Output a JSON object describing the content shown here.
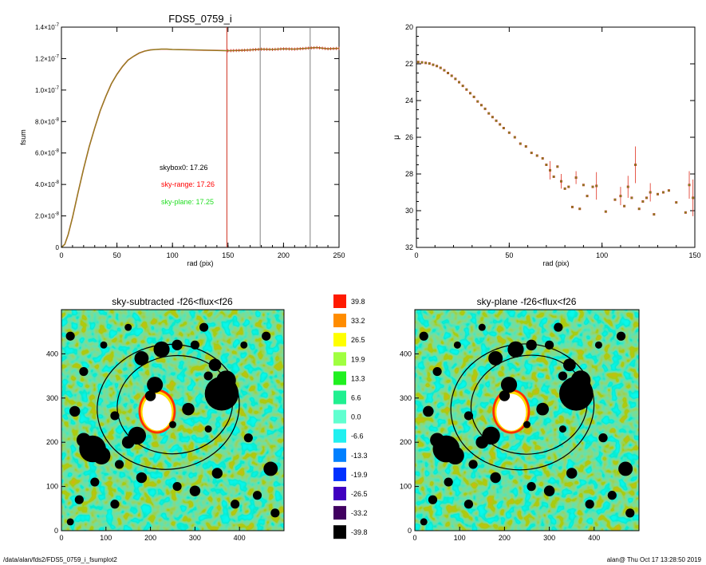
{
  "footer": {
    "left": "/data/alan/fds2/FDS5_0759_i_fsumplot2",
    "right": "alan@  Thu Oct 17 13:28:50 2019"
  },
  "chart_data": [
    {
      "type": "line",
      "title": "FDS5_0759_i",
      "xlabel": "rad (pix)",
      "ylabel": "fsum",
      "xlim": [
        0,
        250
      ],
      "ylim": [
        0,
        1.4e-07
      ],
      "x_ticks": [
        "0",
        "50",
        "100",
        "150",
        "200",
        "250"
      ],
      "y_ticks": [
        {
          "v": 0,
          "base": "0",
          "exp": ""
        },
        {
          "v": 2e-08,
          "base": "2.0×10",
          "exp": "-8"
        },
        {
          "v": 4e-08,
          "base": "4.0×10",
          "exp": "-8"
        },
        {
          "v": 6e-08,
          "base": "6.0×10",
          "exp": "-8"
        },
        {
          "v": 8e-08,
          "base": "8.0×10",
          "exp": "-8"
        },
        {
          "v": 1e-07,
          "base": "1.0×10",
          "exp": "-7"
        },
        {
          "v": 1.2e-07,
          "base": "1.2×10",
          "exp": "-7"
        },
        {
          "v": 1.4e-07,
          "base": "1.4×10",
          "exp": "-7"
        }
      ],
      "series_x": [
        0,
        3,
        6,
        10,
        15,
        20,
        25,
        30,
        35,
        40,
        45,
        50,
        55,
        60,
        65,
        70,
        75,
        80,
        85,
        90,
        95,
        100,
        120,
        140,
        150,
        160,
        170,
        180,
        190,
        200,
        210,
        220,
        230,
        240,
        250
      ],
      "series_y": [
        0,
        2e-09,
        8e-09,
        1.9e-08,
        3.5e-08,
        5e-08,
        6.4e-08,
        7.6e-08,
        8.7e-08,
        9.6e-08,
        1.04e-07,
        1.1e-07,
        1.15e-07,
        1.19e-07,
        1.215e-07,
        1.235e-07,
        1.248e-07,
        1.255e-07,
        1.258e-07,
        1.26e-07,
        1.26e-07,
        1.258e-07,
        1.255e-07,
        1.252e-07,
        1.25e-07,
        1.252e-07,
        1.255e-07,
        1.26e-07,
        1.258e-07,
        1.262e-07,
        1.26e-07,
        1.265e-07,
        1.27e-07,
        1.262e-07,
        1.265e-07
      ],
      "vlines": [
        {
          "x": 149,
          "color": "#d03020"
        },
        {
          "x": 179,
          "color": "#808080"
        },
        {
          "x": 224,
          "color": "#808080"
        }
      ],
      "annotations": [
        {
          "text": "skybox0: 17.26",
          "color": "#000000"
        },
        {
          "text": "sky-range: 17.26",
          "color": "#ff0000"
        },
        {
          "text": "sky-plane: 17.25",
          "color": "#22dd22"
        }
      ]
    },
    {
      "type": "scatter",
      "title": "",
      "xlabel": "rad (pix)",
      "ylabel": "μ",
      "xlim": [
        0,
        150
      ],
      "ylim": [
        20,
        32
      ],
      "y_inverted": true,
      "x_ticks": [
        "0",
        "50",
        "100",
        "150"
      ],
      "y_ticks": [
        "20",
        "22",
        "24",
        "26",
        "28",
        "30",
        "32"
      ],
      "points": [
        [
          1,
          21.9
        ],
        [
          3,
          21.92
        ],
        [
          5,
          21.95
        ],
        [
          7,
          21.98
        ],
        [
          9,
          22.05
        ],
        [
          11,
          22.12
        ],
        [
          13,
          22.22
        ],
        [
          15,
          22.35
        ],
        [
          17,
          22.5
        ],
        [
          19,
          22.65
        ],
        [
          21,
          22.82
        ],
        [
          23,
          23.0
        ],
        [
          25,
          23.2
        ],
        [
          27,
          23.4
        ],
        [
          29,
          23.6
        ],
        [
          31,
          23.8
        ],
        [
          33,
          24.05
        ],
        [
          35,
          24.25
        ],
        [
          37,
          24.45
        ],
        [
          39,
          24.7
        ],
        [
          41,
          24.9
        ],
        [
          43,
          25.1
        ],
        [
          45,
          25.3
        ],
        [
          47,
          25.5
        ],
        [
          50,
          25.75
        ],
        [
          53,
          26.0
        ],
        [
          56,
          26.35
        ],
        [
          59,
          26.5
        ],
        [
          62,
          26.85
        ],
        [
          65,
          27.0
        ],
        [
          68,
          27.15
        ],
        [
          70,
          27.5
        ],
        [
          72,
          27.8
        ],
        [
          74,
          28.15
        ],
        [
          76,
          27.6
        ],
        [
          78,
          28.4
        ],
        [
          80,
          28.8
        ],
        [
          82,
          28.7
        ],
        [
          84,
          29.8
        ],
        [
          86,
          28.2
        ],
        [
          88,
          29.9
        ],
        [
          90,
          28.6
        ],
        [
          92,
          29.2
        ],
        [
          95,
          28.7
        ],
        [
          97,
          28.65
        ],
        [
          102,
          30.05
        ],
        [
          107,
          29.4
        ],
        [
          110,
          29.2
        ],
        [
          112,
          29.75
        ],
        [
          114,
          28.7
        ],
        [
          116,
          29.3
        ],
        [
          118,
          27.5
        ],
        [
          120,
          29.9
        ],
        [
          122,
          29.5
        ],
        [
          124,
          29.3
        ],
        [
          126,
          29.0
        ],
        [
          128,
          30.2
        ],
        [
          130,
          29.1
        ],
        [
          133,
          29.0
        ],
        [
          136,
          28.9
        ],
        [
          140,
          29.55
        ],
        [
          145,
          30.1
        ],
        [
          147,
          28.6
        ],
        [
          149,
          29.3
        ]
      ],
      "error_points": [
        [
          72,
          27.8,
          1.0
        ],
        [
          78,
          28.4,
          0.8
        ],
        [
          86,
          28.2,
          0.7
        ],
        [
          97,
          28.65,
          1.5
        ],
        [
          110,
          29.2,
          1.0
        ],
        [
          114,
          28.7,
          1.2
        ],
        [
          118,
          27.5,
          2.0
        ],
        [
          126,
          29.0,
          1.0
        ],
        [
          147,
          28.6,
          1.5
        ],
        [
          149,
          29.3,
          2.0
        ]
      ]
    },
    {
      "type": "heatmap",
      "title": "sky-subtracted -f26<flux<f26",
      "x_ticks": [
        "0",
        "100",
        "200",
        "300",
        "400"
      ],
      "y_ticks": [
        "0",
        "100",
        "200",
        "300",
        "400"
      ],
      "xlim": [
        0,
        500
      ],
      "ylim": [
        0,
        500
      ]
    },
    {
      "type": "heatmap",
      "title": "sky-plane -f26<flux<f26",
      "x_ticks": [
        "0",
        "100",
        "200",
        "300",
        "400"
      ],
      "y_ticks": [
        "0",
        "100",
        "200",
        "300",
        "400"
      ],
      "xlim": [
        0,
        500
      ],
      "ylim": [
        0,
        500
      ]
    }
  ],
  "colorbar": {
    "labels": [
      "39.8",
      "33.2",
      "26.5",
      "19.9",
      "13.3",
      "6.6",
      "0.0",
      "-6.6",
      "-13.3",
      "-19.9",
      "-26.5",
      "-33.2",
      "-39.8"
    ],
    "colors": [
      "#ff1a00",
      "#ff8c00",
      "#ffff00",
      "#a0ff40",
      "#20f020",
      "#20f090",
      "#60ffd0",
      "#20f0f0",
      "#0080ff",
      "#0030ff",
      "#4000c0",
      "#400060",
      "#000000"
    ]
  }
}
